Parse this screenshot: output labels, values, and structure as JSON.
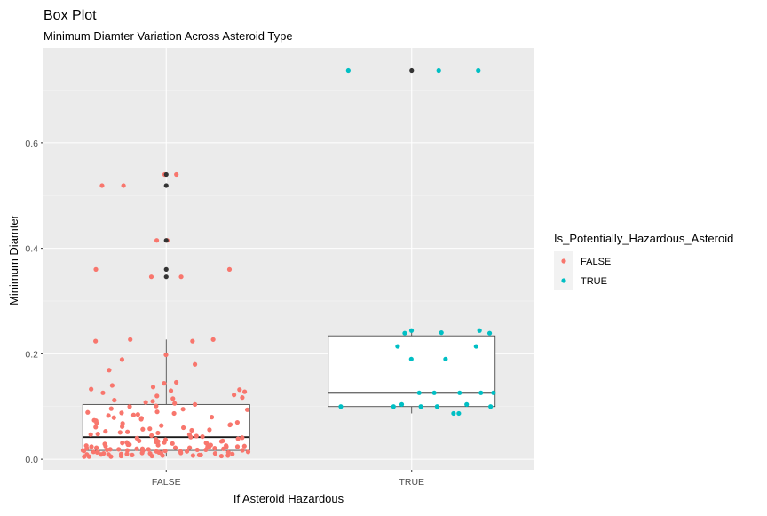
{
  "chart_data": {
    "type": "box",
    "title": "Box Plot",
    "subtitle": "Minimum Diamter Variation Across Asteroid Type",
    "xlabel": "If Asteroid Hazardous",
    "ylabel": "Minimum Diamter",
    "categories": [
      "FALSE",
      "TRUE"
    ],
    "ylim": [
      -0.02,
      0.78
    ],
    "yticks": [
      0.0,
      0.2,
      0.4,
      0.6
    ],
    "ytick_labels": [
      "0.0",
      "0.2",
      "0.4",
      "0.6"
    ],
    "grid": true,
    "background": "#ebebeb",
    "legend": {
      "title": "Is_Potentially_Hazardous_Asteroid",
      "placement": "right",
      "entries": [
        {
          "label": "FALSE",
          "color": "#f8766d"
        },
        {
          "label": "TRUE",
          "color": "#00bfc4"
        }
      ]
    },
    "boxes": [
      {
        "category": "FALSE",
        "q1": 0.017,
        "median": 0.042,
        "q3": 0.104,
        "whisker_low": 0.005,
        "whisker_high": 0.227,
        "outliers": [
          0.54,
          0.519,
          0.415,
          0.36,
          0.346
        ]
      },
      {
        "category": "TRUE",
        "q1": 0.1,
        "median": 0.126,
        "q3": 0.234,
        "whisker_low": 0.087,
        "whisker_high": 0.244,
        "outliers": [
          0.737
        ]
      }
    ],
    "outlier_color": "#333333",
    "jitter_points": [
      {
        "category": "FALSE",
        "y": [
          0.54,
          0.54,
          0.519,
          0.519,
          0.415,
          0.415,
          0.36,
          0.36,
          0.346,
          0.346,
          0.227,
          0.227,
          0.224,
          0.224,
          0.198,
          0.189,
          0.18,
          0.169,
          0.146,
          0.144,
          0.14,
          0.133,
          0.132,
          0.128,
          0.126,
          0.12,
          0.117,
          0.112,
          0.11,
          0.106,
          0.104,
          0.1,
          0.096,
          0.094,
          0.09,
          0.088,
          0.087,
          0.085,
          0.083,
          0.08,
          0.078,
          0.076,
          0.073,
          0.07,
          0.068,
          0.066,
          0.064,
          0.062,
          0.06,
          0.058,
          0.056,
          0.055,
          0.053,
          0.051,
          0.05,
          0.048,
          0.047,
          0.045,
          0.044,
          0.042,
          0.041,
          0.04,
          0.038,
          0.037,
          0.036,
          0.035,
          0.034,
          0.033,
          0.032,
          0.031,
          0.03,
          0.029,
          0.028,
          0.027,
          0.026,
          0.025,
          0.024,
          0.024,
          0.023,
          0.022,
          0.022,
          0.021,
          0.02,
          0.02,
          0.019,
          0.019,
          0.018,
          0.018,
          0.017,
          0.017,
          0.016,
          0.016,
          0.015,
          0.015,
          0.014,
          0.014,
          0.013,
          0.013,
          0.012,
          0.012,
          0.011,
          0.011,
          0.01,
          0.01,
          0.009,
          0.009,
          0.008,
          0.008,
          0.007,
          0.007,
          0.006,
          0.006,
          0.005,
          0.005,
          0.022,
          0.026,
          0.03,
          0.034,
          0.02,
          0.018,
          0.016,
          0.024,
          0.028,
          0.032,
          0.014,
          0.012,
          0.01,
          0.008,
          0.021,
          0.025,
          0.019,
          0.017,
          0.015,
          0.013,
          0.011,
          0.009,
          0.007,
          0.006,
          0.005,
          0.023,
          0.027,
          0.031,
          0.035,
          0.039,
          0.043,
          0.047,
          0.052,
          0.057,
          0.061,
          0.065,
          0.069,
          0.074,
          0.079,
          0.084,
          0.089,
          0.095,
          0.101,
          0.108,
          0.115,
          0.122,
          0.13,
          0.137
        ]
      },
      {
        "category": "TRUE",
        "y": [
          0.737,
          0.737,
          0.737,
          0.244,
          0.244,
          0.24,
          0.239,
          0.239,
          0.214,
          0.214,
          0.19,
          0.19,
          0.126,
          0.126,
          0.126,
          0.126,
          0.126,
          0.104,
          0.104,
          0.1,
          0.1,
          0.1,
          0.1,
          0.1,
          0.087,
          0.087
        ]
      }
    ]
  }
}
